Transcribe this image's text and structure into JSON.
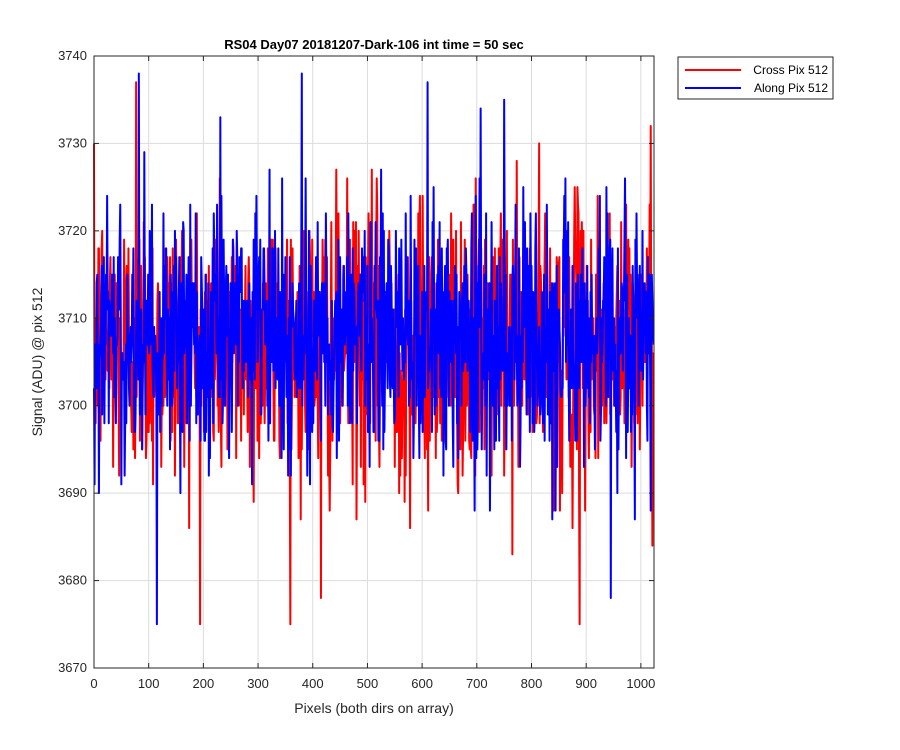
{
  "chart_data": {
    "type": "line",
    "title": "RS04 Day07 20181207-Dark-106 int time = 50 sec",
    "xlabel": "Pixels (both dirs on array)",
    "ylabel": "Signal (ADU) @ pix 512",
    "xlim": [
      0,
      1024
    ],
    "ylim": [
      3670,
      3740
    ],
    "xticks": [
      0,
      100,
      200,
      300,
      400,
      500,
      600,
      700,
      800,
      900,
      1000
    ],
    "yticks": [
      3670,
      3680,
      3690,
      3700,
      3710,
      3720,
      3730,
      3740
    ],
    "grid": true,
    "legend_position": "outside-top-right",
    "series": [
      {
        "name": "Cross Pix 512",
        "color": "#ff0000",
        "approx_mean": 3707,
        "approx_range": [
          3675,
          3737
        ],
        "sample_count": 1024,
        "noted_extremes": [
          {
            "x": 77,
            "y": 3737
          },
          {
            "x": 415,
            "y": 3678
          },
          {
            "x": 888,
            "y": 3675
          },
          {
            "x": 1018,
            "y": 3732
          }
        ]
      },
      {
        "name": "Along Pix 512",
        "color": "#0000ff",
        "approx_mean": 3708,
        "approx_range": [
          3675,
          3738
        ],
        "sample_count": 1024,
        "noted_extremes": [
          {
            "x": 82,
            "y": 3738
          },
          {
            "x": 115,
            "y": 3675
          },
          {
            "x": 380,
            "y": 3738
          },
          {
            "x": 750,
            "y": 3735
          },
          {
            "x": 945,
            "y": 3678
          }
        ]
      }
    ]
  }
}
